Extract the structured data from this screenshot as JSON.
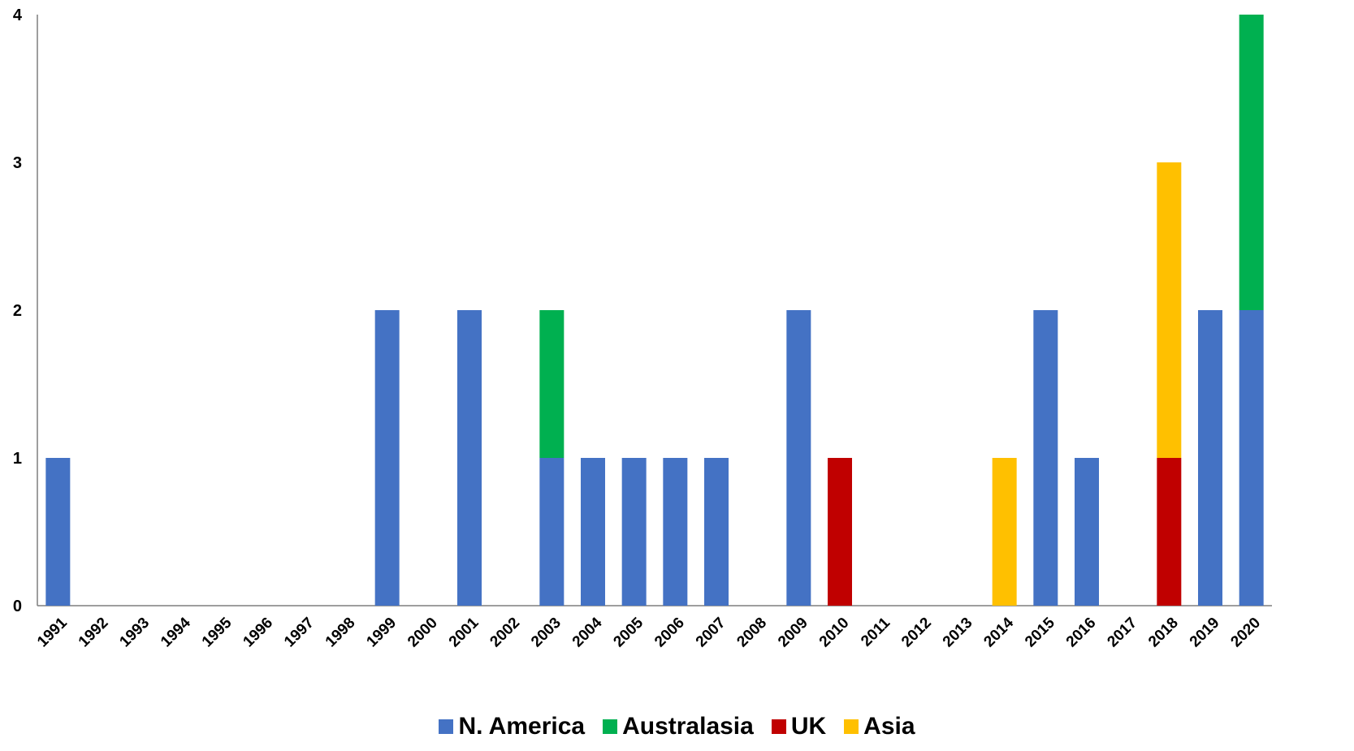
{
  "chart_data": {
    "type": "bar",
    "stacked": true,
    "title": "",
    "xlabel": "",
    "ylabel": "",
    "ylim": [
      0,
      4
    ],
    "yticks": [
      "0",
      "1",
      "2",
      "3",
      "4"
    ],
    "grid": false,
    "legend_position": "bottom",
    "categories": [
      "1991",
      "1992",
      "1993",
      "1994",
      "1995",
      "1996",
      "1997",
      "1998",
      "1999",
      "2000",
      "2001",
      "2002",
      "2003",
      "2004",
      "2005",
      "2006",
      "2007",
      "2008",
      "2009",
      "2010",
      "2011",
      "2012",
      "2013",
      "2014",
      "2015",
      "2016",
      "2017",
      "2018",
      "2019",
      "2020"
    ],
    "series": [
      {
        "name": "N. America",
        "color": "#4472C4",
        "values": [
          1,
          0,
          0,
          0,
          0,
          0,
          0,
          0,
          2,
          0,
          2,
          0,
          1,
          1,
          1,
          1,
          1,
          0,
          2,
          0,
          0,
          0,
          0,
          0,
          2,
          1,
          0,
          0,
          2,
          2
        ]
      },
      {
        "name": "Australasia",
        "color": "#00B050",
        "values": [
          0,
          0,
          0,
          0,
          0,
          0,
          0,
          0,
          0,
          0,
          0,
          0,
          1,
          0,
          0,
          0,
          0,
          0,
          0,
          0,
          0,
          0,
          0,
          0,
          0,
          0,
          0,
          0,
          0,
          2
        ]
      },
      {
        "name": "UK",
        "color": "#C00000",
        "values": [
          0,
          0,
          0,
          0,
          0,
          0,
          0,
          0,
          0,
          0,
          0,
          0,
          0,
          0,
          0,
          0,
          0,
          0,
          0,
          1,
          0,
          0,
          0,
          0,
          0,
          0,
          0,
          1,
          0,
          0
        ]
      },
      {
        "name": "Asia",
        "color": "#FFC000",
        "values": [
          0,
          0,
          0,
          0,
          0,
          0,
          0,
          0,
          0,
          0,
          0,
          0,
          0,
          0,
          0,
          0,
          0,
          0,
          0,
          0,
          0,
          0,
          0,
          1,
          0,
          0,
          0,
          2,
          0,
          0
        ]
      }
    ]
  }
}
